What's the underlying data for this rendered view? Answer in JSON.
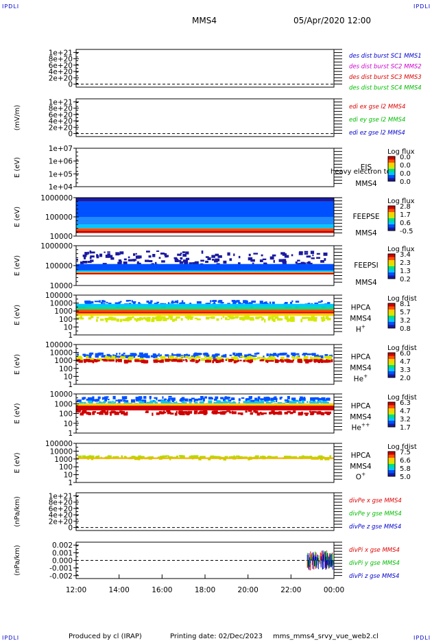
{
  "header": {
    "corner_label": "IPDLI",
    "spacecraft": "MMS4",
    "datetime": "05/Apr/2020 12:00"
  },
  "footer": {
    "produced_by": "Produced by cl (IRAP)",
    "printing_date": "Printing date: 02/Dec/2023",
    "script": "mms_mms4_srvy_vue_web2.cl"
  },
  "colors": {
    "red": "#dd0000",
    "magenta": "#cc00cc",
    "green": "#00bb00",
    "blue": "#0000cc",
    "spectrogram_scale": [
      "#1a1aa0",
      "#0050ff",
      "#00c8ff",
      "#00e080",
      "#d4e800",
      "#ffd000",
      "#ff5000",
      "#d00000"
    ]
  },
  "chart_data": {
    "type": "heatmap",
    "x_axis": {
      "ticks": [
        "12:00",
        "14:00",
        "16:00",
        "18:00",
        "20:00",
        "22:00",
        "00:00"
      ],
      "range": [
        "12:00",
        "00:00"
      ]
    },
    "panels": [
      {
        "id": "des-dist",
        "kind": "line",
        "ylabel": "",
        "yticks": [
          "1e+21",
          "8e+20",
          "6e+20",
          "4e+20",
          "2e+20",
          "0"
        ],
        "zero_dashed": true,
        "legend": [
          {
            "text": "des dist burst SC1 MMS1",
            "color": "#0000cc"
          },
          {
            "text": "des dist burst SC2 MMS2",
            "color": "#cc00cc"
          },
          {
            "text": "des dist burst SC3 MMS3",
            "color": "#dd0000"
          },
          {
            "text": "des dist burst SC4 MMS4",
            "color": "#00bb00"
          }
        ]
      },
      {
        "id": "edi",
        "kind": "line",
        "ylabel": "(mV/m)",
        "yticks": [
          "1e+21",
          "8e+20",
          "6e+20",
          "4e+20",
          "2e+20",
          "0"
        ],
        "zero_dashed": true,
        "legend": [
          {
            "text": "edi ex gse l2 MMS4",
            "color": "#dd0000"
          },
          {
            "text": "edi ey gse l2 MMS4",
            "color": "#00bb00"
          },
          {
            "text": "edi ez gse l2 MMS4",
            "color": "#0000cc"
          }
        ]
      },
      {
        "id": "eis",
        "kind": "spectrogram",
        "ylabel": "E (eV)",
        "yticks": [
          "1e+07",
          "1e+06",
          "1e+05",
          "1e+04"
        ],
        "instrument": [
          "EIS",
          "MMS4"
        ],
        "overlay_text": "heavy electron to",
        "colorbar": {
          "title": "Log flux",
          "ticks": [
            "0.0",
            "0.0",
            "0.0",
            "0.0"
          ]
        },
        "bands": []
      },
      {
        "id": "feepse",
        "kind": "spectrogram",
        "ylabel": "E (eV)",
        "yticks": [
          "1000000",
          "100000",
          "10000"
        ],
        "instrument": [
          "FEEPSE",
          "MMS4"
        ],
        "colorbar": {
          "title": "Log flux",
          "ticks": [
            "2.8",
            "1.7",
            "0.6",
            "-0.5"
          ]
        },
        "bands": [
          {
            "from": 0.0,
            "to": 0.1,
            "color": "#1a1aa0"
          },
          {
            "from": 0.1,
            "to": 0.5,
            "color": "#0050ff"
          },
          {
            "from": 0.5,
            "to": 0.7,
            "color": "#1e88ff"
          },
          {
            "from": 0.7,
            "to": 0.8,
            "color": "#00c8ff"
          },
          {
            "from": 0.8,
            "to": 0.86,
            "color": "#ff5000"
          },
          {
            "from": 0.86,
            "to": 0.92,
            "color": "#d00000"
          }
        ]
      },
      {
        "id": "feepsi",
        "kind": "spectrogram",
        "ylabel": "E (eV)",
        "yticks": [
          "1000000",
          "100000",
          "10000"
        ],
        "instrument": [
          "FEEPSI",
          "MMS4"
        ],
        "colorbar": {
          "title": "Log flux",
          "ticks": [
            "3.4",
            "2.3",
            "1.3",
            "0.2"
          ]
        },
        "bands": [
          {
            "from": 0.12,
            "to": 0.46,
            "color": "#1a1aa0",
            "sparse": true
          },
          {
            "from": 0.46,
            "to": 0.62,
            "color": "#0050ff"
          },
          {
            "from": 0.62,
            "to": 0.66,
            "color": "#00c8ff"
          },
          {
            "from": 0.66,
            "to": 0.68,
            "color": "#ffd000"
          },
          {
            "from": 0.68,
            "to": 0.72,
            "color": "#d00000"
          }
        ]
      },
      {
        "id": "hpca-h",
        "kind": "spectrogram",
        "ylabel": "E (eV)",
        "yticks": [
          "100000",
          "10000",
          "1000",
          "100",
          "10",
          "1"
        ],
        "instrument": [
          "HPCA",
          "MMS4",
          "H+"
        ],
        "colorbar": {
          "title": "Log fdist",
          "ticks": [
            "8.1",
            "5.7",
            "3.2",
            "0.8"
          ]
        },
        "bands": [
          {
            "from": 0.12,
            "to": 0.24,
            "color": "#0050ff",
            "sparse": true
          },
          {
            "from": 0.22,
            "to": 0.3,
            "color": "#00c8ff"
          },
          {
            "from": 0.3,
            "to": 0.36,
            "color": "#00e080"
          },
          {
            "from": 0.36,
            "to": 0.42,
            "color": "#ff5000"
          },
          {
            "from": 0.42,
            "to": 0.46,
            "color": "#d00000"
          },
          {
            "from": 0.46,
            "to": 0.52,
            "color": "#ffd000"
          },
          {
            "from": 0.52,
            "to": 0.6,
            "color": "#d4e800",
            "sparse": true
          }
        ]
      },
      {
        "id": "hpca-he",
        "kind": "spectrogram",
        "ylabel": "E (eV)",
        "yticks": [
          "100000",
          "10000",
          "1000",
          "100",
          "10",
          "1"
        ],
        "instrument": [
          "HPCA",
          "MMS4",
          "He+"
        ],
        "colorbar": {
          "title": "Log fdist",
          "ticks": [
            "6.0",
            "4.7",
            "3.3",
            "2.0"
          ]
        },
        "bands": [
          {
            "from": 0.2,
            "to": 0.28,
            "color": "#0050ff",
            "sparse": true
          },
          {
            "from": 0.28,
            "to": 0.36,
            "color": "#d4e800",
            "sparse": true
          },
          {
            "from": 0.36,
            "to": 0.4,
            "color": "#d00000",
            "sparse": true
          }
        ]
      },
      {
        "id": "hpca-hepp",
        "kind": "spectrogram",
        "ylabel": "E (eV)",
        "yticks": [
          "10000",
          "1000",
          "100",
          "10",
          "1"
        ],
        "instrument": [
          "HPCA",
          "MMS4",
          "He++"
        ],
        "colorbar": {
          "title": "Log fdist",
          "ticks": [
            "6.3",
            "4.7",
            "3.2",
            "1.7"
          ]
        },
        "bands": [
          {
            "from": 0.05,
            "to": 0.16,
            "color": "#0050ff",
            "sparse": true
          },
          {
            "from": 0.16,
            "to": 0.24,
            "color": "#00c8ff",
            "sparse": true
          },
          {
            "from": 0.24,
            "to": 0.3,
            "color": "#ffd000"
          },
          {
            "from": 0.3,
            "to": 0.42,
            "color": "#d00000"
          },
          {
            "from": 0.42,
            "to": 0.48,
            "color": "#d00000",
            "sparse": true
          }
        ]
      },
      {
        "id": "hpca-o",
        "kind": "spectrogram",
        "ylabel": "E (eV)",
        "yticks": [
          "100000",
          "10000",
          "1000",
          "100",
          "10",
          "1"
        ],
        "instrument": [
          "HPCA",
          "MMS4",
          "O+"
        ],
        "colorbar": {
          "title": "Log fdist",
          "ticks": [
            "7.5",
            "6.6",
            "5.8",
            "5.0"
          ]
        },
        "bands": [
          {
            "from": 0.3,
            "to": 0.36,
            "color": "#a8e000",
            "sparse": true
          },
          {
            "from": 0.36,
            "to": 0.4,
            "color": "#ffb000"
          }
        ]
      },
      {
        "id": "divpe",
        "kind": "line",
        "ylabel": "(nPa/km)",
        "yticks": [
          "1e+21",
          "8e+20",
          "6e+20",
          "4e+20",
          "2e+20",
          "0"
        ],
        "zero_dashed": true,
        "legend": [
          {
            "text": "divPe x gse MMS4",
            "color": "#dd0000"
          },
          {
            "text": "divPe y gse MMS4",
            "color": "#00bb00"
          },
          {
            "text": "divPe z gse MMS4",
            "color": "#0000cc"
          }
        ]
      },
      {
        "id": "divpi",
        "kind": "line",
        "ylabel": "(nPa/km)",
        "yticks": [
          "0.002",
          "0.001",
          "0.000",
          "-0.001",
          "-0.002"
        ],
        "zero_dashed": true,
        "legend": [
          {
            "text": "divPi x gse MMS4",
            "color": "#dd0000"
          },
          {
            "text": "divPi y gse MMS4",
            "color": "#00bb00"
          },
          {
            "text": "divPi z gse MMS4",
            "color": "#0000cc"
          }
        ]
      }
    ]
  }
}
